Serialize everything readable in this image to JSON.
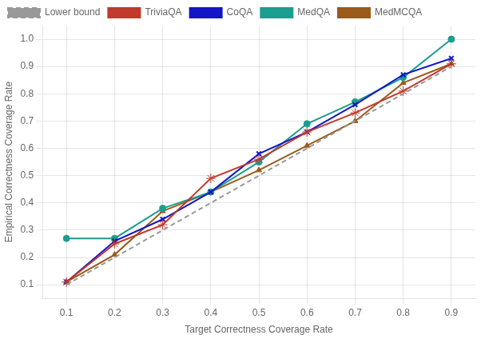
{
  "chart_data": {
    "type": "line",
    "x": [
      0.1,
      0.2,
      0.3,
      0.4,
      0.5,
      0.6,
      0.7,
      0.8,
      0.9
    ],
    "series": [
      {
        "name": "Lower bound",
        "color": "#999999",
        "marker": "none",
        "line_style": "dashed",
        "values": [
          0.1,
          0.2,
          0.3,
          0.4,
          0.5,
          0.6,
          0.7,
          0.8,
          0.9
        ]
      },
      {
        "name": "TriviaQA",
        "color": "#c0392b",
        "marker": "star",
        "line_style": "solid",
        "values": [
          0.11,
          0.25,
          0.32,
          0.49,
          0.56,
          0.66,
          0.73,
          0.81,
          0.91
        ]
      },
      {
        "name": "CoQA",
        "color": "#1515c8",
        "marker": "x",
        "line_style": "solid",
        "values": [
          0.11,
          0.26,
          0.34,
          0.44,
          0.58,
          0.66,
          0.76,
          0.87,
          0.93
        ]
      },
      {
        "name": "MedQA",
        "color": "#1a9e8f",
        "marker": "circle",
        "line_style": "solid",
        "values": [
          0.27,
          0.27,
          0.38,
          0.44,
          0.55,
          0.69,
          0.77,
          0.86,
          1.0
        ]
      },
      {
        "name": "MedMCQA",
        "color": "#9b5a1a",
        "marker": "triangle",
        "line_style": "solid",
        "values": [
          0.11,
          0.21,
          0.37,
          0.44,
          0.52,
          0.61,
          0.7,
          0.84,
          0.91
        ]
      }
    ],
    "xlabel": "Target Correctness Coverage Rate",
    "ylabel": "Empirical Correctness Coverage Rate",
    "xlim": [
      0.05,
      0.95
    ],
    "ylim": [
      0.05,
      1.05
    ],
    "xticks": [
      0.1,
      0.2,
      0.3,
      0.4,
      0.5,
      0.6,
      0.7,
      0.8,
      0.9
    ],
    "yticks": [
      0.1,
      0.2,
      0.3,
      0.4,
      0.5,
      0.6,
      0.7,
      0.8,
      0.9,
      {
        "value": 1.0,
        "label": "1.0"
      }
    ],
    "grid": true,
    "legend": "upper left"
  }
}
